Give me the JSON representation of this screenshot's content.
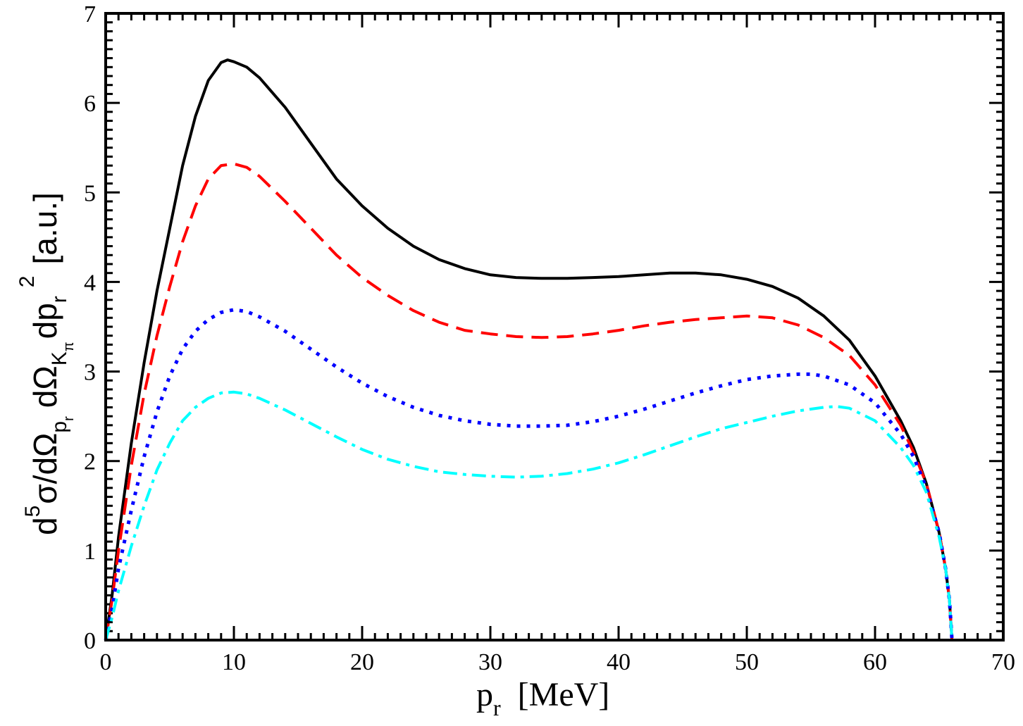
{
  "chart_data": {
    "type": "line",
    "title": "",
    "xlabel": {
      "main": "p",
      "sub": "r",
      "unit": "[MeV]"
    },
    "ylabel": {
      "d": "d",
      "five": "5",
      "sigma": "σ/dΩ",
      "sub_p": "p",
      "sub_r": "r",
      "domega2": "dΩ",
      "sub_K": "K",
      "sub_pi": "π",
      "dp": "dp",
      "sub_r2": "r",
      "sq": "2",
      "unit": "[a.u.]"
    },
    "xlim": [
      0,
      70
    ],
    "ylim": [
      0,
      7
    ],
    "x_ticks": [
      "0",
      "10",
      "20",
      "30",
      "40",
      "50",
      "60",
      "70"
    ],
    "y_ticks": [
      "0",
      "1",
      "2",
      "3",
      "4",
      "5",
      "6",
      "7"
    ],
    "grid": false,
    "series": [
      {
        "color": "#000000",
        "style": "solid",
        "points": [
          [
            0,
            0
          ],
          [
            0.5,
            0.5
          ],
          [
            1,
            1.15
          ],
          [
            2,
            2.2
          ],
          [
            3,
            3.1
          ],
          [
            4,
            3.9
          ],
          [
            5,
            4.6
          ],
          [
            6,
            5.3
          ],
          [
            7,
            5.85
          ],
          [
            8,
            6.25
          ],
          [
            9,
            6.45
          ],
          [
            9.5,
            6.48
          ],
          [
            10,
            6.46
          ],
          [
            11,
            6.4
          ],
          [
            12,
            6.28
          ],
          [
            14,
            5.95
          ],
          [
            16,
            5.55
          ],
          [
            18,
            5.15
          ],
          [
            20,
            4.85
          ],
          [
            22,
            4.6
          ],
          [
            24,
            4.4
          ],
          [
            26,
            4.25
          ],
          [
            28,
            4.15
          ],
          [
            30,
            4.08
          ],
          [
            32,
            4.05
          ],
          [
            34,
            4.04
          ],
          [
            36,
            4.04
          ],
          [
            38,
            4.05
          ],
          [
            40,
            4.06
          ],
          [
            42,
            4.08
          ],
          [
            44,
            4.1
          ],
          [
            46,
            4.1
          ],
          [
            48,
            4.08
          ],
          [
            50,
            4.03
          ],
          [
            52,
            3.95
          ],
          [
            54,
            3.82
          ],
          [
            56,
            3.62
          ],
          [
            58,
            3.35
          ],
          [
            60,
            2.95
          ],
          [
            62,
            2.45
          ],
          [
            63,
            2.15
          ],
          [
            64,
            1.75
          ],
          [
            65,
            1.2
          ],
          [
            65.5,
            0.8
          ],
          [
            65.8,
            0.45
          ],
          [
            66,
            0
          ]
        ]
      },
      {
        "color": "#ff0000",
        "style": "dashed",
        "points": [
          [
            0,
            0
          ],
          [
            0.5,
            0.45
          ],
          [
            1,
            1.0
          ],
          [
            2,
            1.95
          ],
          [
            3,
            2.75
          ],
          [
            4,
            3.4
          ],
          [
            5,
            3.95
          ],
          [
            6,
            4.45
          ],
          [
            7,
            4.85
          ],
          [
            8,
            5.15
          ],
          [
            9,
            5.3
          ],
          [
            10,
            5.32
          ],
          [
            11,
            5.28
          ],
          [
            12,
            5.18
          ],
          [
            14,
            4.9
          ],
          [
            16,
            4.6
          ],
          [
            18,
            4.3
          ],
          [
            20,
            4.05
          ],
          [
            22,
            3.85
          ],
          [
            24,
            3.68
          ],
          [
            26,
            3.55
          ],
          [
            28,
            3.46
          ],
          [
            30,
            3.42
          ],
          [
            32,
            3.39
          ],
          [
            34,
            3.38
          ],
          [
            36,
            3.39
          ],
          [
            38,
            3.42
          ],
          [
            40,
            3.46
          ],
          [
            42,
            3.51
          ],
          [
            44,
            3.55
          ],
          [
            46,
            3.58
          ],
          [
            48,
            3.6
          ],
          [
            50,
            3.62
          ],
          [
            52,
            3.6
          ],
          [
            54,
            3.52
          ],
          [
            56,
            3.38
          ],
          [
            58,
            3.18
          ],
          [
            60,
            2.85
          ],
          [
            62,
            2.4
          ],
          [
            63,
            2.1
          ],
          [
            64,
            1.75
          ],
          [
            65,
            1.2
          ],
          [
            65.5,
            0.8
          ],
          [
            65.8,
            0.45
          ],
          [
            66,
            0
          ]
        ]
      },
      {
        "color": "#0000ff",
        "style": "dotted",
        "points": [
          [
            0,
            0
          ],
          [
            0.5,
            0.35
          ],
          [
            1,
            0.8
          ],
          [
            2,
            1.45
          ],
          [
            3,
            2.05
          ],
          [
            4,
            2.55
          ],
          [
            5,
            2.95
          ],
          [
            6,
            3.25
          ],
          [
            7,
            3.45
          ],
          [
            8,
            3.58
          ],
          [
            9,
            3.66
          ],
          [
            10,
            3.69
          ],
          [
            11,
            3.67
          ],
          [
            12,
            3.61
          ],
          [
            14,
            3.45
          ],
          [
            16,
            3.25
          ],
          [
            18,
            3.05
          ],
          [
            20,
            2.87
          ],
          [
            22,
            2.72
          ],
          [
            24,
            2.6
          ],
          [
            26,
            2.51
          ],
          [
            28,
            2.45
          ],
          [
            30,
            2.41
          ],
          [
            32,
            2.39
          ],
          [
            34,
            2.39
          ],
          [
            36,
            2.4
          ],
          [
            38,
            2.44
          ],
          [
            40,
            2.5
          ],
          [
            42,
            2.58
          ],
          [
            44,
            2.67
          ],
          [
            46,
            2.76
          ],
          [
            48,
            2.84
          ],
          [
            50,
            2.91
          ],
          [
            52,
            2.95
          ],
          [
            54,
            2.97
          ],
          [
            55,
            2.97
          ],
          [
            56,
            2.95
          ],
          [
            58,
            2.85
          ],
          [
            60,
            2.65
          ],
          [
            62,
            2.3
          ],
          [
            63,
            2.05
          ],
          [
            64,
            1.7
          ],
          [
            65,
            1.2
          ],
          [
            65.5,
            0.8
          ],
          [
            65.8,
            0.45
          ],
          [
            66,
            0
          ]
        ]
      },
      {
        "color": "#00ffff",
        "style": "dash-dot",
        "points": [
          [
            0,
            0
          ],
          [
            0.5,
            0.25
          ],
          [
            1,
            0.55
          ],
          [
            2,
            1.05
          ],
          [
            3,
            1.5
          ],
          [
            4,
            1.9
          ],
          [
            5,
            2.2
          ],
          [
            6,
            2.45
          ],
          [
            7,
            2.6
          ],
          [
            8,
            2.7
          ],
          [
            9,
            2.76
          ],
          [
            10,
            2.77
          ],
          [
            11,
            2.75
          ],
          [
            12,
            2.7
          ],
          [
            14,
            2.57
          ],
          [
            16,
            2.42
          ],
          [
            18,
            2.27
          ],
          [
            20,
            2.13
          ],
          [
            22,
            2.02
          ],
          [
            24,
            1.94
          ],
          [
            26,
            1.88
          ],
          [
            28,
            1.85
          ],
          [
            30,
            1.83
          ],
          [
            32,
            1.82
          ],
          [
            34,
            1.83
          ],
          [
            36,
            1.86
          ],
          [
            38,
            1.91
          ],
          [
            40,
            1.98
          ],
          [
            42,
            2.07
          ],
          [
            44,
            2.17
          ],
          [
            46,
            2.27
          ],
          [
            48,
            2.36
          ],
          [
            50,
            2.43
          ],
          [
            52,
            2.5
          ],
          [
            54,
            2.56
          ],
          [
            56,
            2.6
          ],
          [
            57,
            2.61
          ],
          [
            58,
            2.59
          ],
          [
            60,
            2.45
          ],
          [
            62,
            2.15
          ],
          [
            63,
            1.95
          ],
          [
            64,
            1.65
          ],
          [
            65,
            1.15
          ],
          [
            65.5,
            0.8
          ],
          [
            65.8,
            0.45
          ],
          [
            66,
            0
          ]
        ]
      }
    ]
  }
}
